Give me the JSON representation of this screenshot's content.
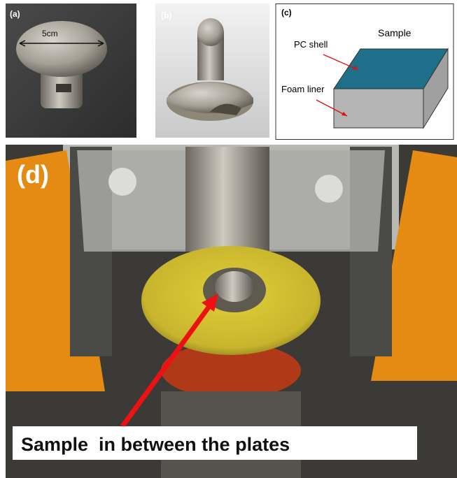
{
  "panel_a": {
    "label": "(a)",
    "scale": "5cm"
  },
  "panel_b": {
    "label": "(b)"
  },
  "panel_c": {
    "label": "(c)",
    "sample": "Sample",
    "pc_shell": "PC shell",
    "foam_liner": "Foam liner"
  },
  "panel_d": {
    "label": "(d)",
    "caption": "Sample  in between the plates"
  }
}
